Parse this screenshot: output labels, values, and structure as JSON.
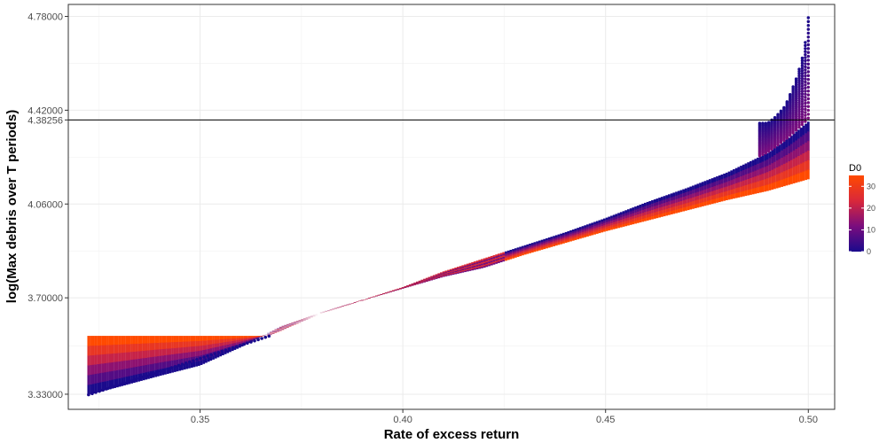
{
  "chart_data": {
    "type": "scatter",
    "title": "",
    "xlabel": "Rate of excess return",
    "ylabel": "log(Max debris over T periods)",
    "xlim": [
      0.3175,
      0.5065
    ],
    "ylim": [
      3.272,
      4.826
    ],
    "x_ticks": [
      0.35,
      0.4,
      0.45,
      0.5
    ],
    "x_tick_labels": [
      "0.35",
      "0.40",
      "0.45",
      "0.50"
    ],
    "y_ticks": [
      3.33,
      3.7,
      4.06,
      4.38256,
      4.42,
      4.78
    ],
    "y_tick_labels": [
      "3.33000",
      "3.70000",
      "4.06000",
      "4.38256",
      "4.42000",
      "4.78000"
    ],
    "hline": {
      "y": 4.38256
    },
    "grid": true,
    "legend": {
      "title": "D0",
      "position": "right",
      "range": [
        0,
        35
      ],
      "ticks": [
        0,
        10,
        20,
        30
      ],
      "tick_labels": [
        "0",
        "10",
        "20",
        "30"
      ],
      "colors": [
        "#1a0a8c",
        "#7a0d7e",
        "#d9283a",
        "#ff4a00"
      ]
    },
    "band_lower": {
      "x": [
        0.3225,
        0.33,
        0.34,
        0.35,
        0.36,
        0.37,
        0.38,
        0.39,
        0.4,
        0.41,
        0.42,
        0.43,
        0.44,
        0.45,
        0.46,
        0.47,
        0.48,
        0.49,
        0.5
      ],
      "y": [
        3.328,
        3.358,
        3.4,
        3.44,
        3.51,
        3.59,
        3.645,
        3.69,
        3.735,
        3.78,
        3.815,
        3.865,
        3.91,
        3.955,
        3.995,
        4.035,
        4.075,
        4.11,
        4.155
      ]
    },
    "band_upper": {
      "x": [
        0.3225,
        0.36,
        0.367,
        0.38,
        0.39,
        0.4,
        0.41,
        0.42,
        0.43,
        0.44,
        0.45,
        0.46,
        0.47,
        0.48,
        0.49,
        0.495,
        0.5
      ],
      "y": [
        3.553,
        3.553,
        3.553,
        3.64,
        3.69,
        3.74,
        3.8,
        3.85,
        3.9,
        3.95,
        4.005,
        4.065,
        4.12,
        4.18,
        4.255,
        4.31,
        4.375
      ]
    },
    "spike_d0_min": {
      "x": [
        0.49,
        0.492,
        0.494,
        0.495,
        0.496,
        0.497,
        0.498,
        0.499,
        0.4995,
        0.5
      ],
      "y": [
        4.37,
        4.395,
        4.43,
        4.46,
        4.5,
        4.54,
        4.59,
        4.65,
        4.71,
        4.775
      ]
    }
  }
}
